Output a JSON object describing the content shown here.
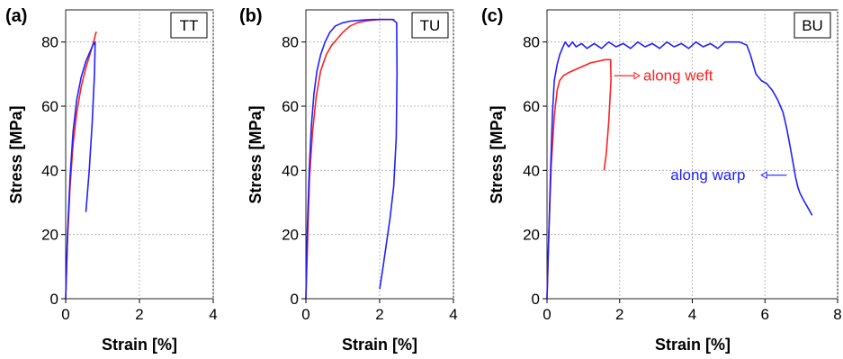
{
  "chart_data": [
    {
      "type": "line",
      "panel_label": "(a)",
      "tag": "TT",
      "xlabel": "Strain [%]",
      "ylabel": "Stress [MPa]",
      "xlim": [
        0,
        4
      ],
      "ylim": [
        0,
        90
      ],
      "xticks": [
        0,
        2,
        4
      ],
      "yticks": [
        0,
        20,
        40,
        60,
        80
      ],
      "grid": true,
      "series": [
        {
          "color": "#ff2020",
          "x": [
            0,
            0.05,
            0.12,
            0.2,
            0.3,
            0.42,
            0.55,
            0.68,
            0.78,
            0.82,
            0.85
          ],
          "y": [
            0,
            18,
            35,
            48,
            58,
            66,
            72,
            77,
            81,
            83,
            83
          ]
        },
        {
          "color": "#2020ff",
          "x": [
            0,
            0.05,
            0.12,
            0.2,
            0.3,
            0.42,
            0.55,
            0.66,
            0.74,
            0.8,
            0.78,
            0.72,
            0.64,
            0.55
          ],
          "y": [
            0,
            20,
            38,
            52,
            62,
            69,
            74,
            77,
            79,
            80,
            70,
            55,
            40,
            27
          ]
        }
      ],
      "annotations": []
    },
    {
      "type": "line",
      "panel_label": "(b)",
      "tag": "TU",
      "xlabel": "Strain [%]",
      "ylabel": "Stress [MPa]",
      "xlim": [
        0,
        4
      ],
      "ylim": [
        0,
        90
      ],
      "xticks": [
        0,
        2,
        4
      ],
      "yticks": [
        0,
        20,
        40,
        60,
        80
      ],
      "grid": true,
      "series": [
        {
          "color": "#ff2020",
          "x": [
            0,
            0.05,
            0.1,
            0.18,
            0.28,
            0.4,
            0.55,
            0.7,
            0.85,
            1.0,
            1.2,
            1.4,
            1.6,
            1.8,
            2.0,
            2.2,
            2.4
          ],
          "y": [
            0,
            20,
            38,
            52,
            63,
            71,
            76,
            79,
            81,
            83,
            85,
            86,
            86.5,
            86.8,
            87,
            87,
            87
          ]
        },
        {
          "color": "#2020ff",
          "x": [
            0,
            0.04,
            0.09,
            0.15,
            0.22,
            0.3,
            0.4,
            0.52,
            0.65,
            0.8,
            1.0,
            1.2,
            1.5,
            1.8,
            2.1,
            2.35,
            2.46,
            2.47,
            2.45,
            2.38,
            2.28,
            2.18,
            2.08,
            2.0
          ],
          "y": [
            0,
            22,
            40,
            54,
            64,
            71,
            76,
            80,
            83,
            85,
            86,
            86.5,
            86.8,
            87,
            87,
            87,
            86,
            70,
            50,
            35,
            25,
            17,
            9,
            3
          ]
        }
      ],
      "annotations": []
    },
    {
      "type": "line",
      "panel_label": "(c)",
      "tag": "BU",
      "xlabel": "Strain [%]",
      "ylabel": "Stress [MPa]",
      "xlim": [
        0,
        8
      ],
      "ylim": [
        0,
        90
      ],
      "xticks": [
        0,
        2,
        4,
        6,
        8
      ],
      "yticks": [
        0,
        20,
        40,
        60,
        80
      ],
      "grid": true,
      "series": [
        {
          "color": "#ff2020",
          "x": [
            0,
            0.05,
            0.12,
            0.2,
            0.28,
            0.35,
            0.45,
            0.6,
            0.8,
            1.0,
            1.2,
            1.4,
            1.6,
            1.75,
            1.76,
            1.7,
            1.63,
            1.57
          ],
          "y": [
            0,
            20,
            42,
            57,
            65,
            68,
            69.5,
            70.5,
            71.5,
            72.5,
            73.5,
            74,
            74.5,
            74.5,
            68,
            55,
            45,
            40
          ]
        },
        {
          "color": "#2020ff",
          "x": [
            0,
            0.05,
            0.1,
            0.15,
            0.2,
            0.28,
            0.35,
            0.42,
            0.5,
            0.6,
            0.7,
            0.8,
            0.95,
            1.1,
            1.3,
            1.5,
            1.7,
            1.9,
            2.1,
            2.3,
            2.5,
            2.7,
            2.9,
            3.1,
            3.3,
            3.5,
            3.7,
            3.9,
            4.1,
            4.3,
            4.5,
            4.7,
            4.9,
            5.1,
            5.3,
            5.5,
            5.6,
            5.75,
            5.9,
            6.05,
            6.2,
            6.35,
            6.5,
            6.6,
            6.7,
            6.78,
            6.84,
            6.9,
            6.96,
            7.05,
            7.15,
            7.25,
            7.3
          ],
          "y": [
            0,
            20,
            40,
            58,
            68,
            73,
            76,
            78,
            80,
            78.5,
            80,
            78.5,
            79.5,
            78,
            79.5,
            78,
            80,
            78.5,
            79.5,
            78,
            80,
            78.5,
            79.5,
            78,
            80,
            78.5,
            79.5,
            78,
            80,
            78.5,
            79.5,
            78,
            80,
            80,
            80,
            79,
            76,
            70,
            68,
            67,
            65,
            62,
            58,
            53,
            47,
            42,
            38,
            35,
            33,
            31,
            29,
            27,
            26
          ]
        }
      ],
      "annotations": [
        {
          "text": "along weft",
          "color": "#ff2020",
          "text_x": 2.65,
          "text_y": 68,
          "arrow_from": [
            2.55,
            69.5
          ],
          "arrow_to": [
            1.85,
            69.5
          ],
          "arrow_dir": "right"
        },
        {
          "text": "along warp",
          "color": "#2020ff",
          "text_x": 3.4,
          "text_y": 37,
          "arrow_from": [
            6.6,
            38.5
          ],
          "arrow_to": [
            5.9,
            38.5
          ],
          "arrow_dir": "left"
        }
      ]
    }
  ]
}
